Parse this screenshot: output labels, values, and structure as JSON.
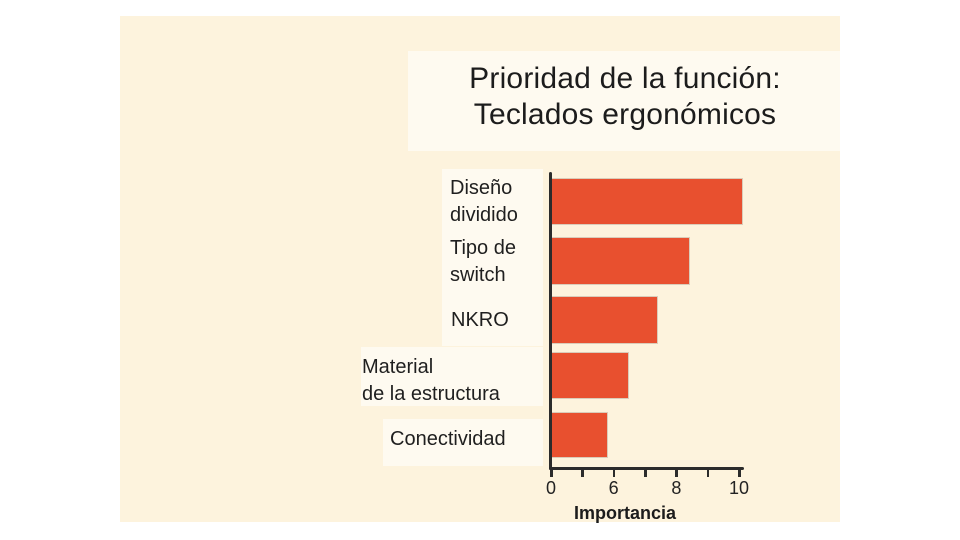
{
  "page": {
    "background": "#ffffff",
    "panel_background": "#fdf3dd",
    "highlight_overlay": "rgba(255,255,255,0.55)"
  },
  "title": {
    "line1": "Prioridad de la función:",
    "line2": "Teclados ergonómicos"
  },
  "display_labels": [
    "Diseño\ndividido",
    "Tipo de\nswitch",
    "NKRO",
    "Material\nde la estructura",
    "Conectividad"
  ],
  "chart_data": {
    "type": "bar",
    "orientation": "horizontal",
    "title": "Prioridad de la función: Teclados ergonómicos",
    "categories": [
      "Diseño dividido",
      "Tipo de switch",
      "NKRO",
      "Material de la estructura",
      "Conectividad"
    ],
    "values": [
      10,
      8.5,
      7.5,
      6.5,
      5.5
    ],
    "xlabel": "Importancia",
    "ylabel": "",
    "axis": {
      "tick_labels": [
        "0",
        "",
        "6",
        "",
        "8",
        "",
        "10"
      ],
      "labeled_ticks": [
        0,
        6,
        8,
        10
      ],
      "tick_count": 7
    },
    "bar_fractions": [
      1.01,
      0.73,
      0.56,
      0.405,
      0.29
    ],
    "bar_color": "#e8502f",
    "axis_color": "#2b2b2b",
    "grid": false,
    "legend": false
  }
}
